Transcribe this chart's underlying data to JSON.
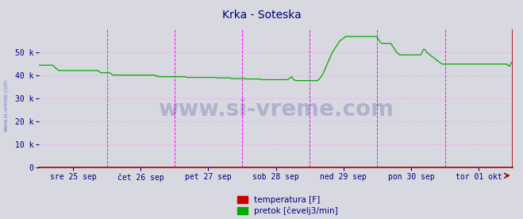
{
  "title": "Krka - Soteska",
  "title_color": "#000080",
  "title_fontsize": 10,
  "bg_color": "#d8d8e0",
  "plot_bg_color": "#d8d8e0",
  "grid_color": "#ff88ff",
  "grid_style": ":",
  "ylim": [
    0,
    60000
  ],
  "yticks": [
    0,
    10000,
    20000,
    30000,
    40000,
    50000
  ],
  "ytick_labels": [
    "0",
    "10 k",
    "20 k",
    "30 k",
    "40 k",
    "50 k"
  ],
  "tick_color": "#000080",
  "x_labels": [
    "sre 25 sep",
    "čet 26 sep",
    "pet 27 sep",
    "sob 28 sep",
    "ned 29 sep",
    "pon 30 sep",
    "tor 01 okt"
  ],
  "vline_color": "#ff00ff",
  "vline_style": "--",
  "watermark": "www.si-vreme.com",
  "watermark_color": "#000080",
  "watermark_alpha": 0.18,
  "legend_temp_color": "#cc0000",
  "legend_flow_color": "#00aa00",
  "legend_temp_label": "temperatura [F]",
  "legend_flow_label": "pretok [čevelj3/min]",
  "bottom_axis_color": "#aa0000",
  "right_vline_color": "#aa0000",
  "sidebar_text": "www.si-vreme.com",
  "sidebar_color": "#3333aa",
  "flow_data": [
    44500,
    44500,
    44500,
    44500,
    44500,
    44500,
    44500,
    44500,
    44500,
    44500,
    43800,
    43200,
    42700,
    42200,
    42200,
    42200,
    42200,
    42200,
    42200,
    42200,
    42200,
    42200,
    42200,
    42200,
    42200,
    42200,
    42200,
    42200,
    42200,
    42200,
    42200,
    42200,
    42200,
    42200,
    42200,
    42200,
    42200,
    42200,
    42200,
    42200,
    41700,
    41200,
    41200,
    41200,
    41200,
    41200,
    41200,
    41200,
    40700,
    40200,
    40200,
    40200,
    40200,
    40200,
    40200,
    40200,
    40200,
    40200,
    40200,
    40200,
    40200,
    40200,
    40200,
    40200,
    40200,
    40200,
    40200,
    40200,
    40200,
    40200,
    40200,
    40200,
    40200,
    40200,
    40200,
    40200,
    40200,
    40200,
    39700,
    39700,
    39500,
    39500,
    39500,
    39500,
    39500,
    39500,
    39500,
    39500,
    39500,
    39500,
    39500,
    39500,
    39500,
    39500,
    39500,
    39500,
    39500,
    39500,
    39200,
    39200,
    39200,
    39200,
    39200,
    39200,
    39200,
    39200,
    39200,
    39200,
    39200,
    39200,
    39200,
    39200,
    39200,
    39200,
    39200,
    39200,
    39200,
    39200,
    39000,
    39000,
    39000,
    39000,
    39000,
    39000,
    39000,
    39000,
    39000,
    39000,
    38700,
    38700,
    38700,
    38700,
    38700,
    38700,
    38700,
    38700,
    38700,
    38700,
    38500,
    38500,
    38500,
    38500,
    38500,
    38500,
    38500,
    38500,
    38500,
    38500,
    38200,
    38200,
    38200,
    38200,
    38200,
    38200,
    38200,
    38200,
    38200,
    38200,
    38200,
    38200,
    38200,
    38200,
    38200,
    38200,
    38200,
    38200,
    38500,
    39000,
    39500,
    38500,
    38000,
    37800,
    37800,
    37800,
    37800,
    37800,
    37800,
    37800,
    37800,
    37800,
    37800,
    37800,
    37800,
    37800,
    37800,
    37800,
    38200,
    39000,
    40000,
    41000,
    42500,
    44000,
    45500,
    47000,
    48500,
    50000,
    51000,
    52000,
    53000,
    54000,
    55000,
    55500,
    56000,
    56500,
    57000,
    57000,
    57000,
    57000,
    57000,
    57000,
    57000,
    57000,
    57000,
    57000,
    57000,
    57000,
    57000,
    57000,
    57000,
    57000,
    57000,
    57000,
    57000,
    57000,
    57000,
    56500,
    55500,
    54500,
    54000,
    54000,
    54000,
    54000,
    54000,
    54000,
    54000,
    53000,
    52000,
    51000,
    50000,
    49500,
    49000,
    49000,
    49000,
    49000,
    49000,
    49000,
    49000,
    49000,
    49000,
    49000,
    49000,
    49000,
    49000,
    49000,
    49000,
    50500,
    51500,
    51000,
    50000,
    49500,
    49000,
    48500,
    48000,
    47500,
    47000,
    46500,
    46000,
    45500,
    45000,
    45000,
    45000,
    45000,
    45000,
    45000,
    45000,
    45000,
    45000,
    45000,
    45000,
    45000,
    45000,
    45000,
    45000,
    45000,
    45000,
    45000,
    45000,
    45000,
    45000,
    45000,
    45000,
    45000,
    45000,
    45000,
    45000,
    45000,
    45000,
    45000,
    45000,
    45000,
    45000,
    45000,
    45000,
    45000,
    45000,
    45000,
    45000,
    45000,
    45000,
    45000,
    45000,
    45000,
    44500,
    44000,
    45500,
    46000
  ]
}
